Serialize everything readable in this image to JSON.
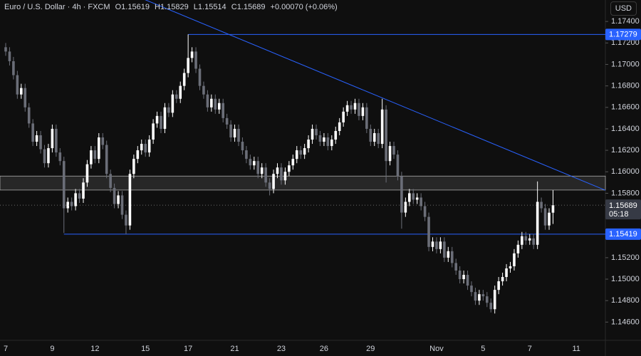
{
  "chart_data": {
    "type": "candlestick",
    "title": "Euro / U.S. Dollar · 4h · FXCM",
    "ohlc_letters": [
      "O",
      "H",
      "L",
      "C"
    ],
    "change": "+0.00070 (+0.06%)",
    "currency": "USD",
    "countdown": "05:18",
    "up_color": "#ffffff",
    "down_color": "#6b6e78",
    "level_color": "#2962ff",
    "ylim": [
      1.1443,
      1.176
    ],
    "yticks": [
      {
        "value": 1.174,
        "label": "1.17400"
      },
      {
        "value": 1.172,
        "label": "1.17200"
      },
      {
        "value": 1.17,
        "label": "1.17000"
      },
      {
        "value": 1.168,
        "label": "1.16800"
      },
      {
        "value": 1.166,
        "label": "1.16600"
      },
      {
        "value": 1.164,
        "label": "1.16400"
      },
      {
        "value": 1.162,
        "label": "1.16200"
      },
      {
        "value": 1.16,
        "label": "1.16000"
      },
      {
        "value": 1.158,
        "label": "1.15800"
      },
      {
        "value": 1.152,
        "label": "1.15200"
      },
      {
        "value": 1.15,
        "label": "1.15000"
      },
      {
        "value": 1.148,
        "label": "1.14800"
      },
      {
        "value": 1.146,
        "label": "1.14600"
      }
    ],
    "grid": false,
    "categories": [
      "7",
      null,
      null,
      null,
      null,
      null,
      null,
      null,
      null,
      null,
      null,
      null,
      "9",
      null,
      null,
      null,
      null,
      null,
      null,
      null,
      null,
      null,
      null,
      "12",
      null,
      null,
      null,
      null,
      null,
      null,
      null,
      null,
      null,
      null,
      null,
      null,
      "15",
      null,
      null,
      null,
      null,
      null,
      null,
      null,
      null,
      null,
      null,
      "17",
      null,
      null,
      null,
      null,
      null,
      null,
      null,
      null,
      null,
      null,
      null,
      "21",
      null,
      null,
      null,
      null,
      null,
      null,
      null,
      null,
      null,
      null,
      null,
      "23",
      null,
      null,
      null,
      null,
      null,
      null,
      null,
      null,
      null,
      null,
      "26",
      null,
      null,
      null,
      null,
      null,
      null,
      null,
      null,
      null,
      null,
      null,
      "29",
      null,
      null,
      null,
      null,
      null,
      null,
      null,
      null,
      null,
      null,
      null,
      null,
      null,
      null,
      null,
      null,
      "Nov",
      null,
      null,
      null,
      null,
      null,
      null,
      null,
      null,
      null,
      null,
      null,
      "5",
      null,
      null,
      null,
      null,
      null,
      null,
      null,
      null,
      null,
      null,
      null,
      "7",
      null,
      null,
      null,
      null,
      null,
      null,
      null,
      null,
      null,
      null,
      null,
      "11"
    ],
    "open": [
      1.1716,
      1.1712,
      1.1703,
      1.169,
      1.1672,
      1.1678,
      1.166,
      1.1645,
      1.1628,
      1.1634,
      1.1621,
      1.1608,
      1.1622,
      1.164,
      1.1618,
      1.161,
      1.1566,
      1.1572,
      1.1568,
      1.158,
      1.1575,
      1.159,
      1.1607,
      1.162,
      1.1612,
      1.1632,
      1.1625,
      1.1598,
      1.1585,
      1.157,
      1.1578,
      1.156,
      1.155,
      1.1598,
      1.1612,
      1.162,
      1.1626,
      1.1618,
      1.163,
      1.1645,
      1.1652,
      1.164,
      1.166,
      1.1655,
      1.1672,
      1.1668,
      1.168,
      1.1692,
      1.1706,
      1.1712,
      1.1696,
      1.168,
      1.1672,
      1.166,
      1.1668,
      1.1658,
      1.1664,
      1.165,
      1.1644,
      1.1632,
      1.164,
      1.1628,
      1.162,
      1.1612,
      1.1606,
      1.161,
      1.1598,
      1.1604,
      1.159,
      1.1584,
      1.1598,
      1.1604,
      1.1592,
      1.16,
      1.1606,
      1.1612,
      1.162,
      1.1616,
      1.1622,
      1.163,
      1.164,
      1.1634,
      1.1628,
      1.1632,
      1.1624,
      1.163,
      1.1638,
      1.1646,
      1.1656,
      1.1662,
      1.1658,
      1.1664,
      1.1652,
      1.166,
      1.164,
      1.1628,
      1.1636,
      1.1626,
      1.1658,
      1.161,
      1.1624,
      1.1616,
      1.1596,
      1.1562,
      1.1572,
      1.158,
      1.1574,
      1.1576,
      1.1568,
      1.1558,
      1.153,
      1.1535,
      1.1528,
      1.1535,
      1.152,
      1.1526,
      1.1515,
      1.1508,
      1.15,
      1.1504,
      1.1494,
      1.1488,
      1.148,
      1.1486,
      1.1484,
      1.1478,
      1.1472,
      1.149,
      1.1498,
      1.1502,
      1.151,
      1.1512,
      1.1524,
      1.1532,
      1.154,
      1.1536,
      1.1538,
      1.1532,
      1.1572,
      1.1566,
      1.155,
      1.15619,
      null,
      null,
      null,
      null,
      null,
      null
    ],
    "high": [
      1.172,
      1.1716,
      1.1707,
      1.1694,
      1.1682,
      1.1682,
      1.1664,
      1.1649,
      1.1638,
      1.1638,
      1.1625,
      1.1626,
      1.1644,
      1.1644,
      1.1622,
      1.1614,
      1.1576,
      1.1576,
      1.1584,
      1.1584,
      1.1594,
      1.1611,
      1.1624,
      1.1624,
      1.1636,
      1.1636,
      1.1629,
      1.1602,
      1.1589,
      1.1582,
      1.1582,
      1.1564,
      1.1602,
      1.1616,
      1.1624,
      1.163,
      1.163,
      1.1634,
      1.1649,
      1.1656,
      1.1656,
      1.1664,
      1.1664,
      1.1676,
      1.1676,
      1.1684,
      1.1696,
      1.1728,
      1.1716,
      1.1716,
      1.17,
      1.1684,
      1.1676,
      1.1672,
      1.1672,
      1.1668,
      1.1668,
      1.1654,
      1.1648,
      1.1644,
      1.1644,
      1.1632,
      1.1624,
      1.1616,
      1.1614,
      1.1614,
      1.1608,
      1.1608,
      1.1594,
      1.1602,
      1.1608,
      1.1608,
      1.1604,
      1.161,
      1.1616,
      1.1624,
      1.1624,
      1.1626,
      1.1634,
      1.1644,
      1.1644,
      1.1638,
      1.1636,
      1.1636,
      1.1634,
      1.1642,
      1.165,
      1.166,
      1.1666,
      1.1666,
      1.1668,
      1.1668,
      1.1664,
      1.1664,
      1.1644,
      1.164,
      1.164,
      1.1668,
      1.1662,
      1.1628,
      1.1628,
      1.162,
      1.16,
      1.1576,
      1.1584,
      1.1584,
      1.158,
      1.158,
      1.1572,
      1.1562,
      1.1539,
      1.1539,
      1.1539,
      1.1539,
      1.153,
      1.153,
      1.1519,
      1.1512,
      1.1508,
      1.1508,
      1.1498,
      1.1492,
      1.149,
      1.149,
      1.1488,
      1.1482,
      1.1494,
      1.1502,
      1.1506,
      1.1514,
      1.1516,
      1.1528,
      1.1536,
      1.1544,
      1.1544,
      1.1542,
      1.1542,
      1.1591,
      1.1576,
      1.157,
      1.1566,
      1.15829,
      null,
      null,
      null,
      null,
      null,
      null
    ],
    "low": [
      1.1708,
      1.1699,
      1.1686,
      1.1668,
      1.1668,
      1.1656,
      1.1641,
      1.1624,
      1.1624,
      1.1617,
      1.1604,
      1.1604,
      1.1618,
      1.1614,
      1.1606,
      1.1543,
      1.1562,
      1.1564,
      1.1564,
      1.1571,
      1.1571,
      1.1586,
      1.1603,
      1.1608,
      1.1608,
      1.1621,
      1.1594,
      1.1581,
      1.1566,
      1.1566,
      1.1556,
      1.1542,
      1.1546,
      1.1594,
      1.1608,
      1.1616,
      1.1614,
      1.1614,
      1.1626,
      1.1641,
      1.1636,
      1.1636,
      1.1651,
      1.1651,
      1.1664,
      1.1664,
      1.1676,
      1.1688,
      1.1702,
      1.1692,
      1.1676,
      1.1668,
      1.1656,
      1.1656,
      1.1654,
      1.1654,
      1.1646,
      1.164,
      1.1628,
      1.1628,
      1.1624,
      1.1616,
      1.1608,
      1.1602,
      1.1602,
      1.1594,
      1.1594,
      1.1586,
      1.1578,
      1.158,
      1.1594,
      1.1588,
      1.1588,
      1.1596,
      1.1602,
      1.1608,
      1.1612,
      1.1612,
      1.1618,
      1.1626,
      1.163,
      1.1624,
      1.1624,
      1.162,
      1.162,
      1.1626,
      1.1634,
      1.1642,
      1.1652,
      1.1654,
      1.1654,
      1.1648,
      1.1648,
      1.1636,
      1.1624,
      1.1624,
      1.1622,
      1.1622,
      1.159,
      1.1606,
      1.1612,
      1.1592,
      1.1547,
      1.1558,
      1.1568,
      1.157,
      1.157,
      1.1564,
      1.1554,
      1.1526,
      1.1526,
      1.1524,
      1.1524,
      1.1516,
      1.1516,
      1.1511,
      1.1504,
      1.1496,
      1.1496,
      1.149,
      1.1484,
      1.1476,
      1.1476,
      1.148,
      1.1474,
      1.1469,
      1.1468,
      1.1486,
      1.1494,
      1.1498,
      1.1506,
      1.1508,
      1.152,
      1.1528,
      1.1532,
      1.1532,
      1.1528,
      1.1528,
      1.1562,
      1.1546,
      1.1546,
      1.15514,
      null,
      null,
      null,
      null,
      null,
      null
    ],
    "close": [
      1.1712,
      1.1703,
      1.169,
      1.1672,
      1.1678,
      1.166,
      1.1645,
      1.1628,
      1.1634,
      1.1621,
      1.1608,
      1.1622,
      1.164,
      1.1618,
      1.161,
      1.1566,
      1.1572,
      1.1568,
      1.158,
      1.1575,
      1.159,
      1.1607,
      1.162,
      1.1612,
      1.1632,
      1.1625,
      1.1598,
      1.1585,
      1.157,
      1.1578,
      1.156,
      1.155,
      1.1598,
      1.1612,
      1.162,
      1.1626,
      1.1618,
      1.163,
      1.1645,
      1.1652,
      1.164,
      1.166,
      1.1655,
      1.1672,
      1.1668,
      1.168,
      1.1692,
      1.1706,
      1.1712,
      1.1696,
      1.168,
      1.1672,
      1.166,
      1.1668,
      1.1658,
      1.1664,
      1.165,
      1.1644,
      1.1632,
      1.164,
      1.1628,
      1.162,
      1.1612,
      1.1606,
      1.161,
      1.1598,
      1.1604,
      1.159,
      1.1584,
      1.1598,
      1.1604,
      1.1592,
      1.16,
      1.1606,
      1.1612,
      1.162,
      1.1616,
      1.1622,
      1.163,
      1.164,
      1.1634,
      1.1628,
      1.1632,
      1.1624,
      1.163,
      1.1638,
      1.1646,
      1.1656,
      1.1662,
      1.1658,
      1.1664,
      1.1652,
      1.166,
      1.164,
      1.1628,
      1.1636,
      1.1626,
      1.1658,
      1.161,
      1.1624,
      1.1616,
      1.1596,
      1.1562,
      1.1572,
      1.158,
      1.1574,
      1.1576,
      1.1568,
      1.1558,
      1.153,
      1.1535,
      1.1528,
      1.1535,
      1.152,
      1.1526,
      1.1515,
      1.1508,
      1.15,
      1.1504,
      1.1494,
      1.1488,
      1.148,
      1.1486,
      1.1484,
      1.1478,
      1.1472,
      1.149,
      1.1498,
      1.1502,
      1.151,
      1.1512,
      1.1524,
      1.1532,
      1.154,
      1.1536,
      1.1538,
      1.1532,
      1.1572,
      1.1566,
      1.155,
      1.15619,
      1.15689,
      null,
      null,
      null,
      null,
      null,
      null
    ],
    "levels": [
      {
        "value": 1.17279,
        "start": 47
      },
      {
        "value": 1.15419,
        "start": 15
      }
    ],
    "zone": [
      1.1583,
      1.1596
    ],
    "trendline": {
      "start": {
        "index": 0,
        "price": 1.1814
      },
      "end": {
        "index": 147,
        "price": 1.1594
      }
    }
  }
}
